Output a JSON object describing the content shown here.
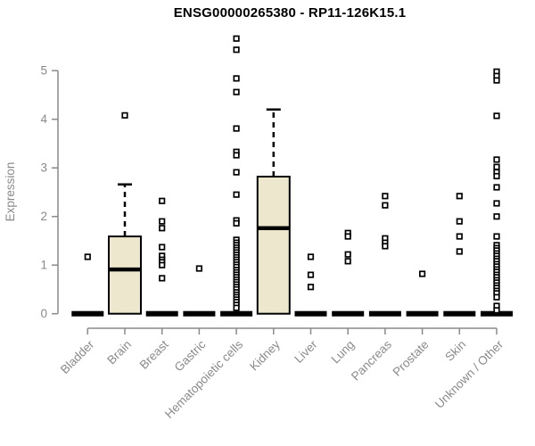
{
  "title": "ENSG00000265380 - RP11-126K15.1",
  "colors": {
    "box_fill": "#EDE8CD",
    "box_stroke": "#000000",
    "median_color": "#000000",
    "whisker_color": "#000000",
    "zero_bar_color": "#000000",
    "point_fill": "#FFFFFF",
    "point_stroke": "#000000",
    "axis_color": "#8a8a8a",
    "tick_text_color": "#8a8a8a",
    "title_color": "#000000"
  },
  "chart_data": {
    "type": "boxplot",
    "title": "ENSG00000265380 - RP11-126K15.1",
    "ylabel": "Expression",
    "xlabel": "",
    "ylim": [
      0,
      5.8
    ],
    "y_ticks": [
      0,
      1,
      2,
      3,
      4,
      5
    ],
    "grid": false,
    "legend": "none",
    "categories": [
      "Bladder",
      "Brain",
      "Breast",
      "Gastric",
      "Hematopoietic cells",
      "Kidney",
      "Liver",
      "Lung",
      "Pancreas",
      "Prostate",
      "Skin",
      "Unknown / Other"
    ],
    "series": [
      {
        "category": "Bladder",
        "box": {
          "min": 0,
          "q1": 0,
          "median": 0,
          "q3": 0,
          "max": 0
        },
        "outliers": [
          1.17
        ]
      },
      {
        "category": "Brain",
        "box": {
          "min": 0,
          "q1": 0,
          "median": 0.91,
          "q3": 1.59,
          "max": 2.66
        },
        "outliers": [
          4.08
        ]
      },
      {
        "category": "Breast",
        "box": {
          "min": 0,
          "q1": 0,
          "median": 0,
          "q3": 0,
          "max": 0
        },
        "outliers": [
          2.32,
          1.9,
          1.76,
          1.37,
          1.19,
          1.11,
          1.06,
          1.0,
          0.73
        ]
      },
      {
        "category": "Gastric",
        "box": {
          "min": 0,
          "q1": 0,
          "median": 0,
          "q3": 0,
          "max": 0
        },
        "outliers": [
          0.93
        ]
      },
      {
        "category": "Hematopoietic cells",
        "box": {
          "min": 0,
          "q1": 0,
          "median": 0,
          "q3": 0,
          "max": 0
        },
        "outliers": [
          5.66,
          5.43,
          4.84,
          4.56,
          3.81,
          3.33,
          3.26,
          2.91,
          2.45,
          1.92,
          1.86,
          1.52,
          1.46,
          1.41,
          1.36,
          1.31,
          1.26,
          1.21,
          1.16,
          1.11,
          1.06,
          1.01,
          0.96,
          0.9,
          0.85,
          0.8,
          0.75,
          0.7,
          0.65,
          0.6,
          0.55,
          0.5,
          0.44,
          0.39,
          0.34,
          0.29,
          0.24,
          0.18,
          0.12
        ]
      },
      {
        "category": "Kidney",
        "box": {
          "min": 0,
          "q1": 0,
          "median": 1.76,
          "q3": 2.82,
          "max": 4.2
        },
        "outliers": []
      },
      {
        "category": "Liver",
        "box": {
          "min": 0,
          "q1": 0,
          "median": 0,
          "q3": 0,
          "max": 0
        },
        "outliers": [
          1.17,
          0.8,
          0.55
        ]
      },
      {
        "category": "Lung",
        "box": {
          "min": 0,
          "q1": 0,
          "median": 0,
          "q3": 0,
          "max": 0
        },
        "outliers": [
          1.66,
          1.59,
          1.22,
          1.08
        ]
      },
      {
        "category": "Pancreas",
        "box": {
          "min": 0,
          "q1": 0,
          "median": 0,
          "q3": 0,
          "max": 0
        },
        "outliers": [
          2.42,
          2.23,
          1.55,
          1.46,
          1.39
        ]
      },
      {
        "category": "Prostate",
        "box": {
          "min": 0,
          "q1": 0,
          "median": 0,
          "q3": 0,
          "max": 0
        },
        "outliers": [
          0.82
        ]
      },
      {
        "category": "Skin",
        "box": {
          "min": 0,
          "q1": 0,
          "median": 0,
          "q3": 0,
          "max": 0
        },
        "outliers": [
          2.42,
          1.9,
          1.59,
          1.28
        ]
      },
      {
        "category": "Unknown / Other",
        "box": {
          "min": 0,
          "q1": 0,
          "median": 0,
          "q3": 0,
          "max": 0
        },
        "outliers": [
          4.98,
          4.89,
          4.8,
          4.07,
          3.17,
          3.02,
          2.91,
          2.83,
          2.6,
          2.27,
          2.0,
          1.59,
          1.41,
          1.35,
          1.3,
          1.24,
          1.19,
          1.13,
          1.08,
          1.02,
          0.97,
          0.91,
          0.86,
          0.8,
          0.75,
          0.69,
          0.64,
          0.58,
          0.53,
          0.47,
          0.42,
          0.34,
          0.16,
          0.07
        ]
      }
    ]
  }
}
